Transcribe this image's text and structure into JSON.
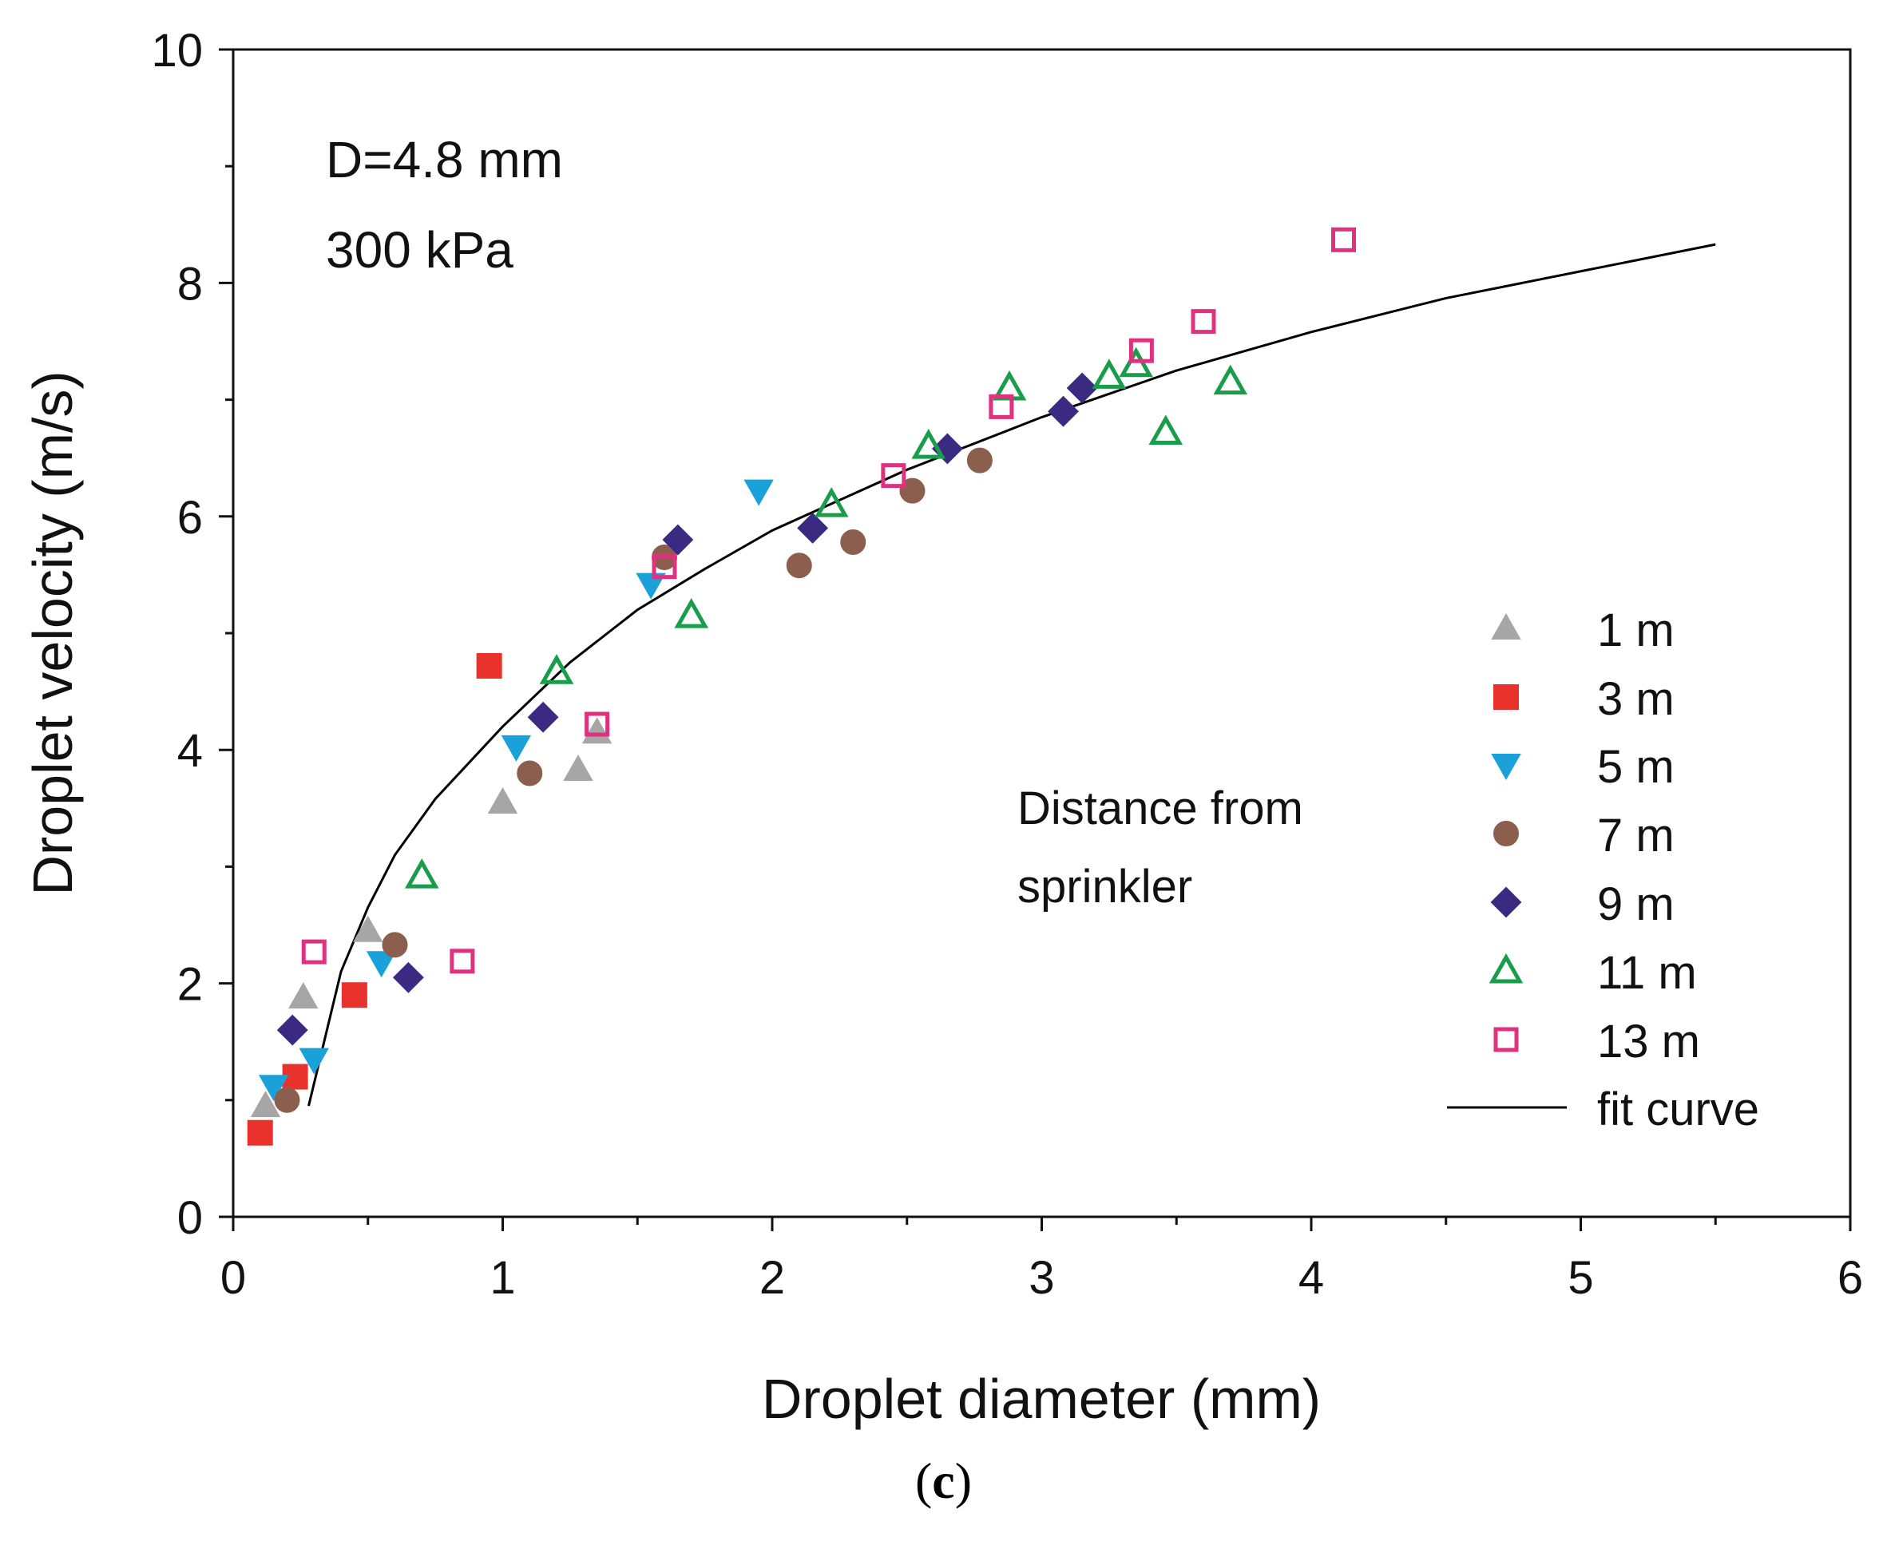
{
  "caption": {
    "open": "(",
    "letter": "c",
    "close": ")"
  },
  "chart_data": {
    "type": "scatter",
    "title": "",
    "annotation_lines": [
      "D=4.8 mm",
      "300 kPa"
    ],
    "legend_title_lines": [
      "Distance from",
      "sprinkler"
    ],
    "legend_position": "lower-right",
    "xlabel": "Droplet diameter (mm)",
    "ylabel": "Droplet velocity (m/s)",
    "xlim": [
      0,
      6
    ],
    "ylim": [
      0,
      10
    ],
    "xticks": [
      0,
      1,
      2,
      3,
      4,
      5,
      6
    ],
    "yticks": [
      0,
      2,
      4,
      6,
      8,
      10
    ],
    "grid": false,
    "series": [
      {
        "name": "1 m",
        "marker": "triangle-up-filled",
        "color": "#a6a6a6",
        "x": [
          0.12,
          0.26,
          0.5,
          1.0,
          1.28,
          1.35
        ],
        "y": [
          0.95,
          1.88,
          2.45,
          3.55,
          3.83,
          4.15
        ]
      },
      {
        "name": "3 m",
        "marker": "square-filled",
        "color": "#e8322b",
        "x": [
          0.1,
          0.23,
          0.45,
          0.95
        ],
        "y": [
          0.72,
          1.2,
          1.9,
          4.72
        ]
      },
      {
        "name": "5 m",
        "marker": "triangle-down-filled",
        "color": "#1aa1d9",
        "x": [
          0.15,
          0.3,
          0.55,
          1.05,
          1.55,
          1.95
        ],
        "y": [
          1.12,
          1.35,
          2.18,
          4.03,
          5.42,
          6.22
        ]
      },
      {
        "name": "7 m",
        "marker": "circle-filled",
        "color": "#8b5e4d",
        "x": [
          0.2,
          0.6,
          1.1,
          1.6,
          2.1,
          2.3,
          2.52,
          2.77
        ],
        "y": [
          1.0,
          2.33,
          3.8,
          5.65,
          5.58,
          5.78,
          6.22,
          6.48
        ]
      },
      {
        "name": "9 m",
        "marker": "diamond-filled",
        "color": "#3b2a82",
        "x": [
          0.22,
          0.65,
          1.15,
          1.65,
          2.15,
          2.65,
          3.08,
          3.15
        ],
        "y": [
          1.6,
          2.05,
          4.28,
          5.8,
          5.9,
          6.58,
          6.9,
          7.1
        ]
      },
      {
        "name": "11 m",
        "marker": "triangle-up-open",
        "color": "#1a9d4b",
        "x": [
          0.7,
          1.2,
          1.7,
          2.22,
          2.58,
          2.88,
          3.25,
          3.35,
          3.46,
          3.7
        ],
        "y": [
          2.92,
          4.67,
          5.15,
          6.1,
          6.6,
          7.1,
          7.2,
          7.3,
          6.72,
          7.15
        ]
      },
      {
        "name": "13 m",
        "marker": "square-open",
        "color": "#e0317f",
        "x": [
          0.3,
          0.85,
          1.35,
          1.6,
          2.45,
          2.85,
          3.37,
          3.6,
          4.12
        ],
        "y": [
          2.27,
          2.19,
          4.22,
          5.57,
          6.35,
          6.94,
          7.42,
          7.67,
          8.37
        ]
      }
    ],
    "fit_curve": {
      "name": "fit curve",
      "color": "#000000",
      "x": [
        0.28,
        0.4,
        0.5,
        0.6,
        0.75,
        1.0,
        1.25,
        1.5,
        1.75,
        2.0,
        2.5,
        3.0,
        3.5,
        4.0,
        4.5,
        5.0,
        5.5
      ],
      "y": [
        0.95,
        2.1,
        2.65,
        3.1,
        3.58,
        4.2,
        4.75,
        5.2,
        5.55,
        5.88,
        6.4,
        6.85,
        7.25,
        7.58,
        7.87,
        8.1,
        8.33
      ]
    }
  }
}
